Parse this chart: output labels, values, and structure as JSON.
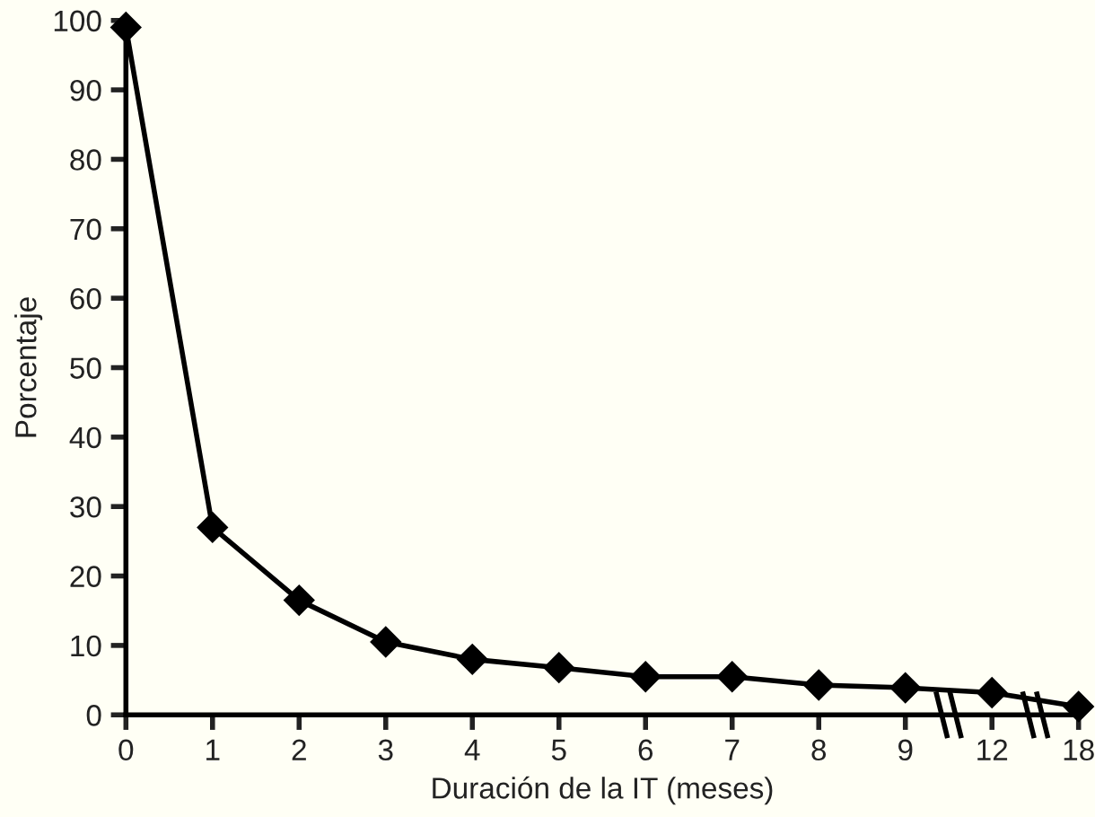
{
  "chart_data": {
    "type": "line",
    "xlabel": "Duración de la IT (meses)",
    "ylabel": "Porcentaje",
    "categories": [
      "0",
      "1",
      "2",
      "3",
      "4",
      "5",
      "6",
      "7",
      "8",
      "9",
      "12",
      "18"
    ],
    "series": [
      {
        "color": "#000000",
        "values": [
          99,
          27,
          16.5,
          10.5,
          8,
          6.8,
          5.5,
          5.5,
          4.3,
          3.9,
          3.2,
          1.2
        ]
      }
    ],
    "ylim": [
      0,
      100
    ],
    "yticks": [
      0,
      10,
      20,
      30,
      40,
      50,
      60,
      70,
      80,
      90,
      100
    ],
    "marker": "diamond",
    "line_style": "solid",
    "grid": false,
    "legend": false
  }
}
